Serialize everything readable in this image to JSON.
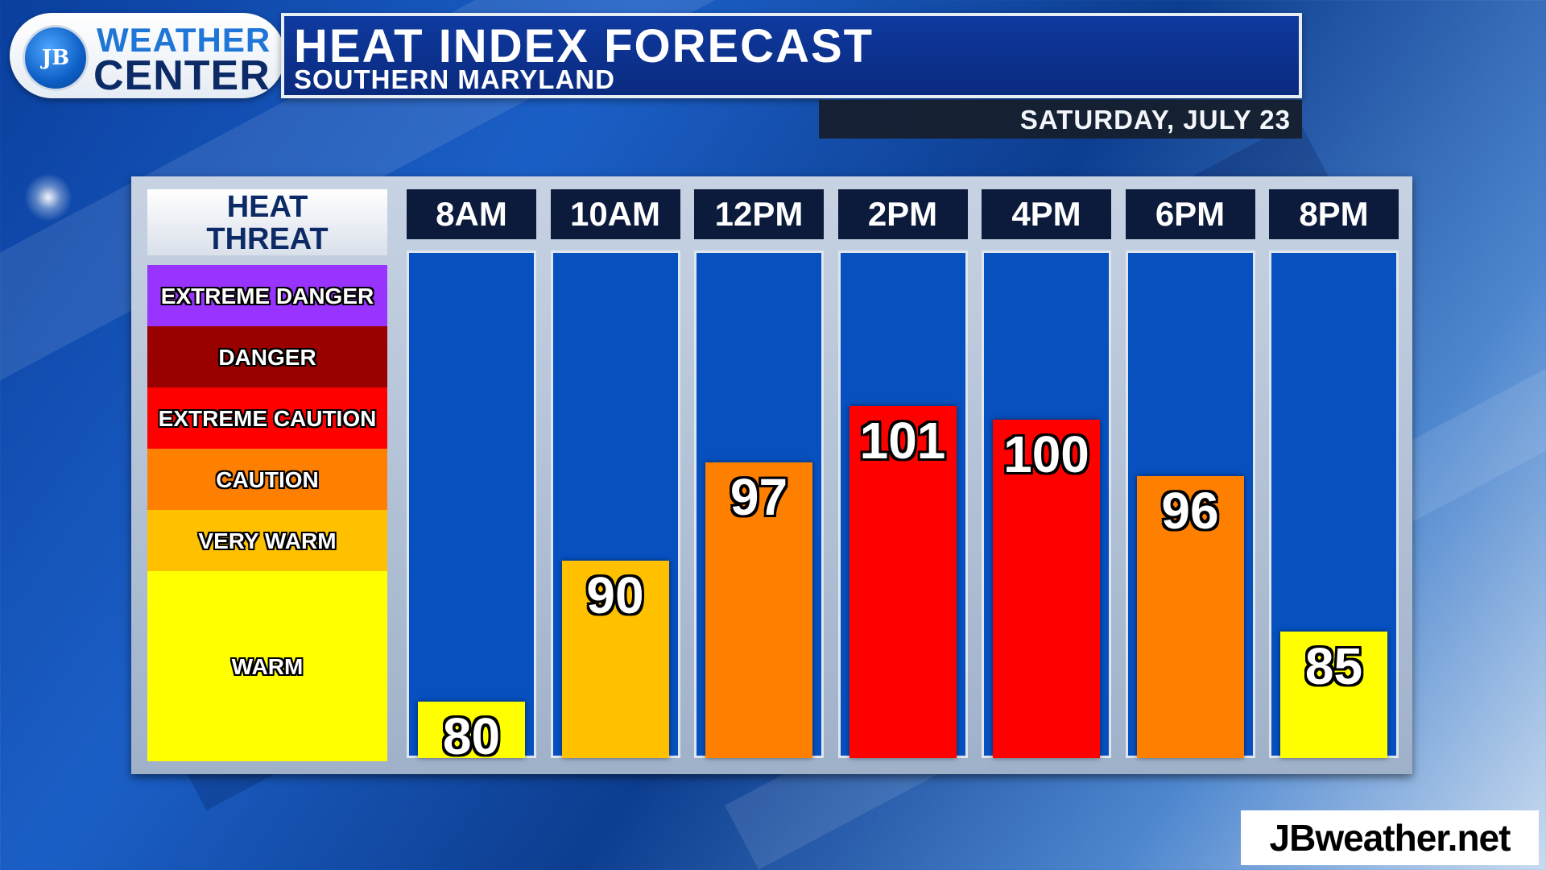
{
  "logo": {
    "initials": "JB",
    "line1": "WEATHER",
    "line2": "CENTER"
  },
  "header": {
    "title": "HEAT INDEX FORECAST",
    "subtitle": "SOUTHERN MARYLAND",
    "date": "SATURDAY, JULY 23"
  },
  "legend": {
    "title": "HEAT THREAT",
    "bands": [
      {
        "label": "EXTREME DANGER",
        "color": "#9933ff"
      },
      {
        "label": "DANGER",
        "color": "#990000"
      },
      {
        "label": "EXTREME CAUTION",
        "color": "#ff0000"
      },
      {
        "label": "CAUTION",
        "color": "#ff7f00"
      },
      {
        "label": "VERY WARM",
        "color": "#ffc000"
      },
      {
        "label": "WARM",
        "color": "#ffff00"
      }
    ]
  },
  "chart_data": {
    "type": "bar",
    "categories": [
      "8AM",
      "10AM",
      "12PM",
      "2PM",
      "4PM",
      "6PM",
      "8PM"
    ],
    "values": [
      80,
      90,
      97,
      101,
      100,
      96,
      85
    ],
    "bar_colors": [
      "#ffff00",
      "#ffc000",
      "#ff7f00",
      "#ff0000",
      "#ff0000",
      "#ff7f00",
      "#ffff00"
    ],
    "title": "HEAT INDEX FORECAST",
    "subtitle": "SOUTHERN MARYLAND"
  },
  "watermark": "JBweather.net"
}
